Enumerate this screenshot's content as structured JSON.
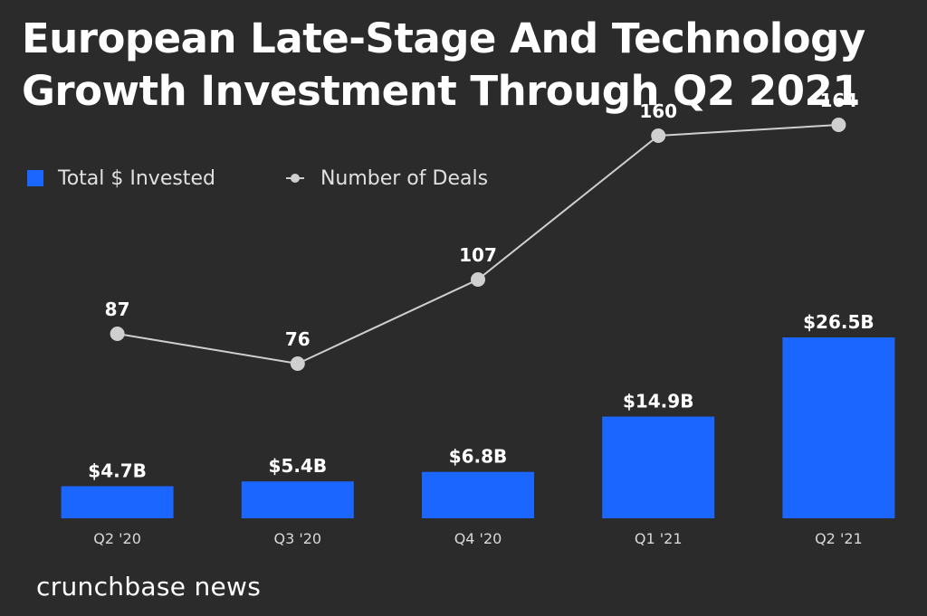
{
  "chart_data": {
    "type": "bar",
    "title": "European Late-Stage And Technology Growth Investment Through Q2 2021",
    "categories": [
      "Q2 '20",
      "Q3 '20",
      "Q4 '20",
      "Q1 '21",
      "Q2 '21"
    ],
    "series": [
      {
        "name": "Total $ Invested",
        "type": "bar",
        "values": [
          4.7,
          5.4,
          6.8,
          14.9,
          26.5
        ],
        "labels": [
          "$4.7B",
          "$5.4B",
          "$6.8B",
          "$14.9B",
          "$26.5B"
        ],
        "color": "#1a66ff"
      },
      {
        "name": "Number of Deals",
        "type": "line",
        "values": [
          87,
          76,
          107,
          160,
          164
        ],
        "labels": [
          "87",
          "76",
          "107",
          "160",
          "164"
        ],
        "color": "#cfcfcf"
      }
    ],
    "legend_position": "top-left",
    "grid": false
  },
  "legend": {
    "bar_label": "Total $ Invested",
    "line_label": "Number of Deals"
  },
  "footer": {
    "brand": "crunchbase news"
  },
  "colors": {
    "background": "#2b2b2b",
    "bar": "#1a66ff",
    "line": "#cfcfcf",
    "text": "#ffffff"
  }
}
